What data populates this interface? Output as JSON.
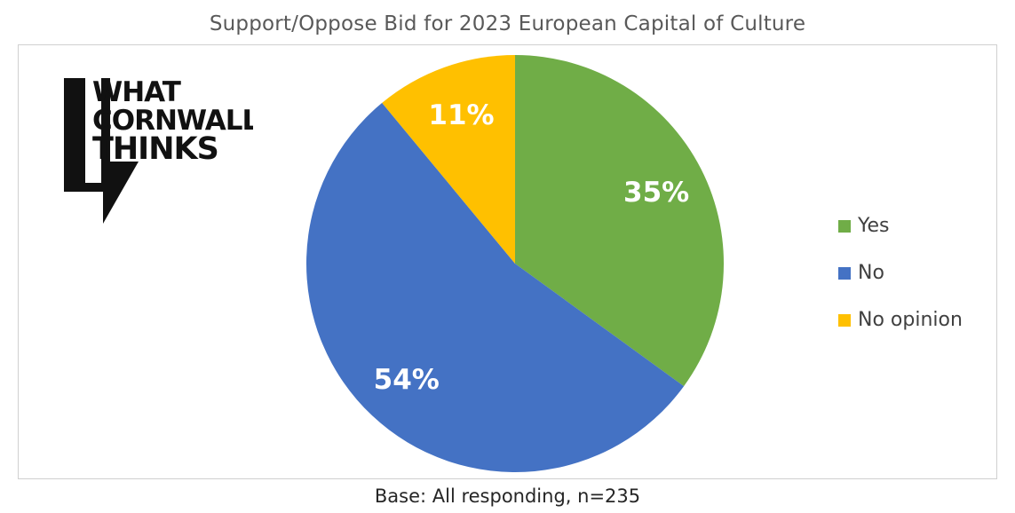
{
  "chart_data": {
    "type": "pie",
    "title": "Support/Oppose Bid for 2023 European Capital of Culture",
    "footer": "Base: All responding, n=235",
    "categories": [
      "Yes",
      "No",
      "No opinion"
    ],
    "values": [
      35,
      54,
      11
    ],
    "labels": [
      "35%",
      "54%",
      "11%"
    ],
    "colors": [
      "#70AD47",
      "#4472C4",
      "#FFC000"
    ],
    "start_angle_deg": 0,
    "direction": "clockwise",
    "legend_position": "right"
  },
  "logo": {
    "lines": [
      "WHAT",
      "CORNWALL",
      "THINKS"
    ]
  }
}
